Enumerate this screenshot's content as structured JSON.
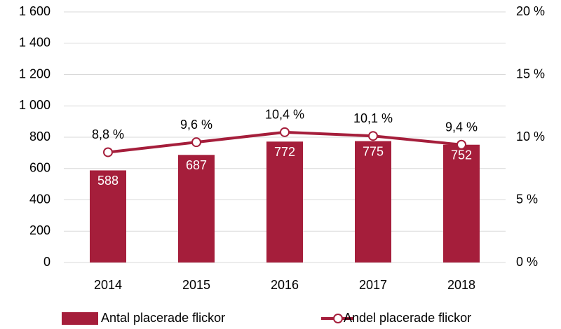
{
  "chart_data": {
    "type": "bar",
    "categories": [
      "2014",
      "2015",
      "2016",
      "2017",
      "2018"
    ],
    "series": [
      {
        "name": "Antal placerade flickor",
        "type": "bar",
        "color": "#a51e3b",
        "values": [
          588,
          687,
          772,
          775,
          752
        ]
      },
      {
        "name": "Andel placerade flickor",
        "type": "line",
        "axis": "y2",
        "color": "#a51e3b",
        "values": [
          8.8,
          9.6,
          10.4,
          10.1,
          9.4
        ],
        "value_labels": [
          "8,8 %",
          "9,6 %",
          "10,4 %",
          "10,1 %",
          "9,4 %"
        ]
      }
    ],
    "ylim": [
      0,
      1600
    ],
    "yticks": [
      0,
      200,
      400,
      600,
      800,
      {
        "value": 1000,
        "label": "1 000"
      },
      {
        "value": 1200,
        "label": "1 200"
      },
      {
        "value": 1400,
        "label": "1 400"
      },
      {
        "value": 1600,
        "label": "1 600"
      }
    ],
    "y2lim": [
      0,
      20
    ],
    "y2ticks": [
      {
        "value": 0,
        "label": "0 %"
      },
      {
        "value": 5,
        "label": "5 %"
      },
      {
        "value": 10,
        "label": "10 %"
      },
      {
        "value": 15,
        "label": "15 %"
      },
      {
        "value": 20,
        "label": "20 %"
      }
    ],
    "grid": true,
    "legend": "bottom"
  }
}
